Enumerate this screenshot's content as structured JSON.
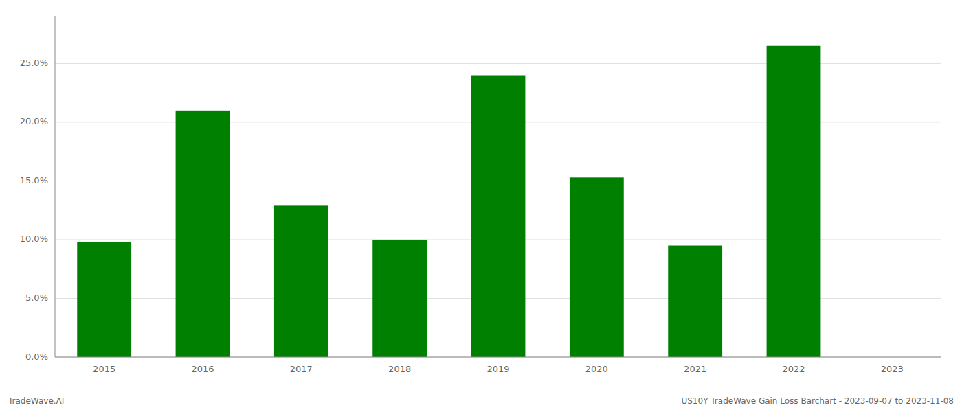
{
  "chart_data": {
    "type": "bar",
    "categories": [
      "2015",
      "2016",
      "2017",
      "2018",
      "2019",
      "2020",
      "2021",
      "2022",
      "2023"
    ],
    "values": [
      0.098,
      0.21,
      0.129,
      0.1,
      0.24,
      0.153,
      0.095,
      0.265,
      null
    ],
    "color": "#008000",
    "ylim": [
      0,
      0.29
    ],
    "yticks": [
      {
        "value": 0.0,
        "label": "0.0%"
      },
      {
        "value": 0.05,
        "label": "5.0%"
      },
      {
        "value": 0.1,
        "label": "10.0%"
      },
      {
        "value": 0.15,
        "label": "15.0%"
      },
      {
        "value": 0.2,
        "label": "20.0%"
      },
      {
        "value": 0.25,
        "label": "25.0%"
      }
    ],
    "grid": true,
    "annotations": [
      "TradeWave.AI",
      "US10Y TradeWave Gain Loss Barchart - 2023-09-07 to 2023-11-08"
    ]
  }
}
